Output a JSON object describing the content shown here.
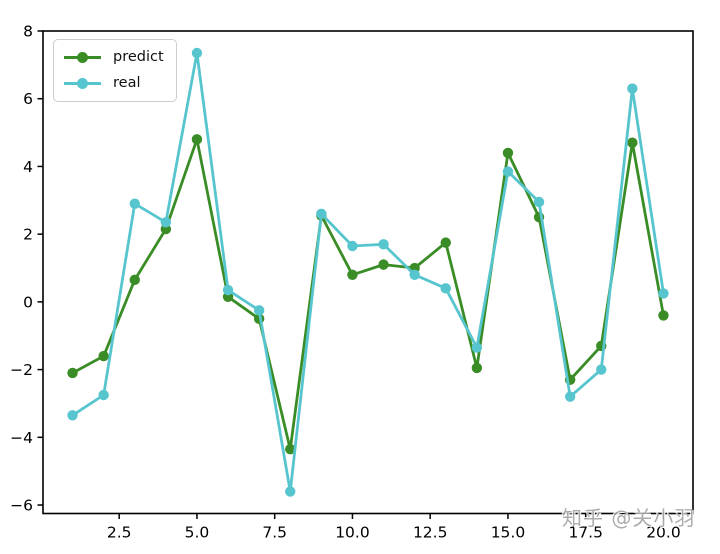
{
  "watermark": {
    "text": "知乎 @关小羽"
  },
  "legend": {
    "items": [
      {
        "label": "predict",
        "color": "#3a8c26"
      },
      {
        "label": "real",
        "color": "#57c5ce"
      }
    ]
  },
  "chart_data": {
    "type": "line",
    "title": "",
    "xlabel": "",
    "ylabel": "",
    "grid": false,
    "legend_position": "upper left",
    "x": [
      1,
      2,
      3,
      4,
      5,
      6,
      7,
      8,
      9,
      10,
      11,
      12,
      13,
      14,
      15,
      16,
      17,
      18,
      19,
      20
    ],
    "series": [
      {
        "name": "predict",
        "color": "#3a8c26",
        "values": [
          -2.1,
          -1.6,
          0.65,
          2.15,
          4.8,
          0.15,
          -0.5,
          -4.35,
          2.55,
          0.8,
          1.1,
          1.0,
          1.75,
          -1.95,
          4.4,
          2.5,
          -2.3,
          -1.3,
          4.7,
          -0.4
        ]
      },
      {
        "name": "real",
        "color": "#57c5ce",
        "values": [
          -3.35,
          -2.75,
          2.9,
          2.35,
          7.35,
          0.35,
          -0.25,
          -5.6,
          2.6,
          1.65,
          1.7,
          0.8,
          0.4,
          -1.35,
          3.85,
          2.95,
          -2.8,
          -2.0,
          6.3,
          0.25
        ]
      }
    ],
    "xlim": [
      0.05,
      20.95
    ],
    "ylim": [
      -6.25,
      8.0
    ],
    "xticks": [
      2.5,
      5.0,
      7.5,
      10.0,
      12.5,
      15.0,
      17.5,
      20.0
    ],
    "xtick_labels": [
      "2.5",
      "5.0",
      "7.5",
      "10.0",
      "12.5",
      "15.0",
      "17.5",
      "20.0"
    ],
    "yticks": [
      8,
      6,
      4,
      2,
      0,
      -2,
      -4,
      -6
    ],
    "ytick_labels": [
      "8",
      "6",
      "4",
      "2",
      "0",
      "−2",
      "−4",
      "−6"
    ]
  }
}
